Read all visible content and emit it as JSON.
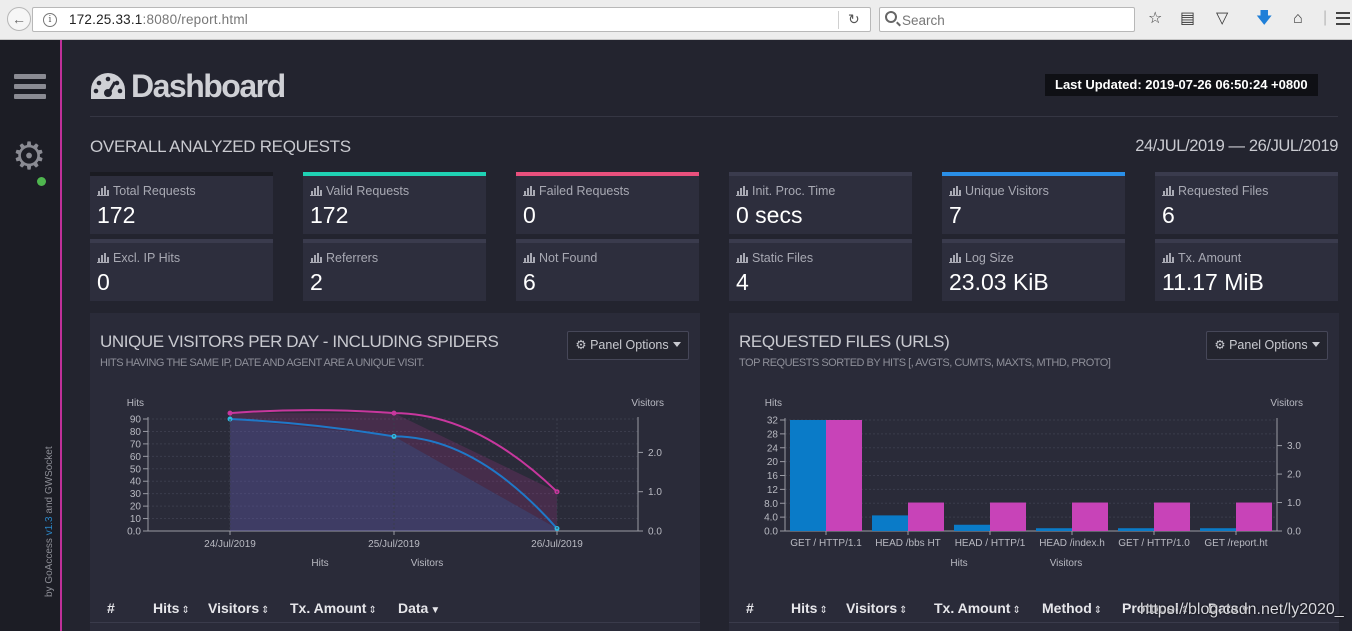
{
  "browser": {
    "url_host": "172.25.33.1",
    "url_rest": ":8080/report.html",
    "search_placeholder": "Search"
  },
  "sidebar": {
    "credit_prefix": "by GoAccess ",
    "credit_version": "v1.3",
    "credit_suffix": " and GWSocket"
  },
  "header": {
    "title": "Dashboard",
    "last_updated": "Last Updated: 2019-07-26 06:50:24 +0800"
  },
  "overall": {
    "title": "OVERALL ANALYZED REQUESTS",
    "date_range": "24/JUL/2019 — 26/JUL/2019",
    "accent_colors": {
      "total": "#1a1b22",
      "valid": "#1fd2b4",
      "failed": "#e9507d",
      "unique": "#2a8fe8"
    },
    "cards": [
      {
        "label": "Total Requests",
        "value": "172"
      },
      {
        "label": "Valid Requests",
        "value": "172"
      },
      {
        "label": "Failed Requests",
        "value": "0"
      },
      {
        "label": "Init. Proc. Time",
        "value": "0 secs"
      },
      {
        "label": "Unique Visitors",
        "value": "7"
      },
      {
        "label": "Requested Files",
        "value": "6"
      },
      {
        "label": "Excl. IP Hits",
        "value": "0"
      },
      {
        "label": "Referrers",
        "value": "2"
      },
      {
        "label": "Not Found",
        "value": "6"
      },
      {
        "label": "Static Files",
        "value": "4"
      },
      {
        "label": "Log Size",
        "value": "23.03 KiB"
      },
      {
        "label": "Tx. Amount",
        "value": "11.17 MiB"
      }
    ]
  },
  "panels": {
    "visitors": {
      "title": "UNIQUE VISITORS PER DAY - INCLUDING SPIDERS",
      "subtitle": "HITS HAVING THE SAME IP, DATE AND AGENT ARE A UNIQUE VISIT.",
      "options_label": "Panel Options",
      "columns": [
        "#",
        "Hits",
        "Visitors",
        "Tx. Amount",
        "Data"
      ]
    },
    "requests": {
      "title": "REQUESTED FILES (URLS)",
      "subtitle": "TOP REQUESTS SORTED BY HITS [, AVGTS, CUMTS, MAXTS, MTHD, PROTO]",
      "options_label": "Panel Options",
      "columns": [
        "#",
        "Hits",
        "Visitors",
        "Tx. Amount",
        "Method",
        "Protocol",
        "Data"
      ]
    }
  },
  "chart_data": [
    {
      "type": "line",
      "categories": [
        "24/Jul/2019",
        "25/Jul/2019",
        "26/Jul/2019"
      ],
      "ylabel": "Hits",
      "y2label": "Visitors",
      "ylim": [
        0,
        90
      ],
      "y2lim": [
        0,
        2.85
      ],
      "yticks": [
        "90",
        "80",
        "70",
        "60",
        "50",
        "40",
        "30",
        "20",
        "10",
        "0.0"
      ],
      "y2ticks": [
        "2.0",
        "1.0",
        "0.0"
      ],
      "legend": [
        "Hits",
        "Visitors"
      ],
      "series": [
        {
          "name": "Hits",
          "axis": "left",
          "color": "#1f78c8",
          "values": [
            90,
            76,
            2
          ]
        },
        {
          "name": "Visitors",
          "axis": "right",
          "color": "#c8379e",
          "values": [
            3,
            3,
            1
          ]
        }
      ]
    },
    {
      "type": "bar",
      "categories": [
        "GET / HTTP/1.1",
        "HEAD /bbs HT",
        "HEAD / HTTP/1",
        "HEAD /index.h",
        "GET / HTTP/1.0",
        "GET /report.ht"
      ],
      "ylabel": "Hits",
      "y2label": "Visitors",
      "ylim": [
        0,
        32
      ],
      "y2lim": [
        0,
        3.9
      ],
      "yticks": [
        "32",
        "28",
        "24",
        "20",
        "16",
        "12",
        "8.0",
        "4.0",
        "0.0"
      ],
      "y2ticks": [
        "3.0",
        "2.0",
        "1.0",
        "0.0"
      ],
      "legend": [
        "Hits",
        "Visitors"
      ],
      "series": [
        {
          "name": "Hits",
          "axis": "left",
          "color": "#0a7bc8",
          "values": [
            32,
            4.5,
            1.8,
            0.8,
            0.8,
            0.8
          ]
        },
        {
          "name": "Visitors",
          "axis": "right",
          "color": "#c843b8",
          "values": [
            3.9,
            1,
            1,
            1,
            1,
            1
          ]
        }
      ]
    }
  ],
  "watermark": "https://blog.csdn.net/ly2020_"
}
